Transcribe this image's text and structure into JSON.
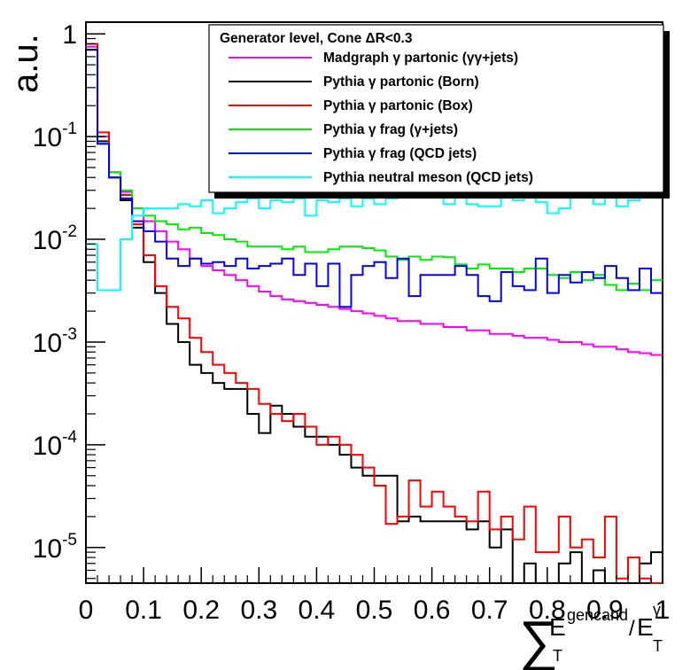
{
  "chart_data": {
    "type": "line",
    "style": "step-histogram",
    "ylabel": "a.u.",
    "xlabel_parts": {
      "sum": "∑",
      "num_main": "E",
      "num_sup": "gencand",
      "num_sub": "T",
      "slash": "/",
      "den_main": "E",
      "den_sup": "γ",
      "den_sub": "T"
    },
    "xlim": [
      0,
      1
    ],
    "ylog": true,
    "ylim": [
      4.5e-06,
      1.3
    ],
    "xticks": [
      0,
      0.1,
      0.2,
      0.3,
      0.4,
      0.5,
      0.6,
      0.7,
      0.8,
      0.9,
      1
    ],
    "xtick_labels": [
      "0",
      "0.1",
      "0.2",
      "0.3",
      "0.4",
      "0.5",
      "0.6",
      "0.7",
      "0.8",
      "0.9",
      "1"
    ],
    "yticks": [
      {
        "value": 1,
        "base": "1",
        "exp": ""
      },
      {
        "value": 0.1,
        "base": "10",
        "exp": "-1"
      },
      {
        "value": 0.01,
        "base": "10",
        "exp": "-2"
      },
      {
        "value": 0.001,
        "base": "10",
        "exp": "-3"
      },
      {
        "value": 0.0001,
        "base": "10",
        "exp": "-4"
      },
      {
        "value": 1e-05,
        "base": "10",
        "exp": "-5"
      }
    ],
    "legend_title": "Generator level, Cone ΔR<0.3",
    "legend_position": "top-right",
    "bin_width": 0.02,
    "series": [
      {
        "name": "Madgraph γ partonic (γγ+jets)",
        "color": "#ff00ff",
        "values": [
          0.75,
          0.1,
          0.045,
          0.029,
          0.02,
          0.015,
          0.012,
          0.0095,
          0.008,
          0.0065,
          0.0055,
          0.005,
          0.0045,
          0.004,
          0.0035,
          0.0031,
          0.0028,
          0.0026,
          0.0025,
          0.0024,
          0.0023,
          0.0022,
          0.0021,
          0.002,
          0.0019,
          0.0018,
          0.0017,
          0.0016,
          0.0016,
          0.0015,
          0.0015,
          0.0014,
          0.0014,
          0.0013,
          0.0013,
          0.0012,
          0.0012,
          0.00115,
          0.0011,
          0.0011,
          0.00105,
          0.001,
          0.001,
          0.00095,
          0.0009,
          0.0009,
          0.00085,
          0.0008,
          0.00078,
          0.00075
        ]
      },
      {
        "name": "Pythia γ partonic (Born)",
        "color": "#000000",
        "values": [
          0.7,
          0.09,
          0.04,
          0.024,
          0.013,
          0.006,
          0.003,
          0.0015,
          0.001,
          0.0006,
          0.0005,
          0.0004,
          0.00035,
          0.00035,
          0.0002,
          0.00013,
          0.00024,
          0.0002,
          0.00015,
          0.00012,
          0.00012,
          0.0001,
          8e-05,
          6e-05,
          5e-05,
          5e-05,
          5e-05,
          1.8e-05,
          2e-05,
          1.8e-05,
          1.8e-05,
          1.8e-05,
          1.8e-05,
          1.5e-05,
          1.8e-05,
          1e-05,
          1.5e-05,
          4.5e-06,
          7e-06,
          3e-06,
          4.5e-06,
          7e-06,
          9e-06,
          4.5e-06,
          6e-06,
          4.5e-06,
          4.5e-06,
          4.5e-06,
          7e-06,
          9e-06
        ]
      },
      {
        "name": "Pythia γ partonic (Box)",
        "color": "#ff0000",
        "values": [
          0.8,
          0.11,
          0.045,
          0.027,
          0.014,
          0.007,
          0.0035,
          0.0022,
          0.0017,
          0.0011,
          0.0008,
          0.0006,
          0.0005,
          0.0004,
          0.00035,
          0.00025,
          0.0002,
          0.00017,
          0.0002,
          0.00015,
          0.0001,
          0.00012,
          0.0001,
          8e-05,
          6e-05,
          4e-05,
          1.7e-05,
          2e-05,
          4.5e-05,
          2.5e-05,
          3.5e-05,
          2.5e-05,
          2e-05,
          1.8e-05,
          3.5e-05,
          1.5e-05,
          2e-05,
          1.2e-05,
          2.5e-05,
          9e-06,
          9e-06,
          2e-05,
          1e-05,
          1.2e-05,
          8e-06,
          2e-05,
          5e-06,
          8e-06,
          5e-06,
          4.5e-06
        ]
      },
      {
        "name": "Pythia γ frag (γ+jets)",
        "color": "#00ee00",
        "values": [
          0.7,
          0.085,
          0.045,
          0.03,
          0.02,
          0.017,
          0.015,
          0.014,
          0.0125,
          0.013,
          0.0115,
          0.011,
          0.01,
          0.0095,
          0.0085,
          0.0085,
          0.0085,
          0.008,
          0.0085,
          0.0075,
          0.0075,
          0.008,
          0.0085,
          0.0085,
          0.0082,
          0.0078,
          0.0068,
          0.0063,
          0.0068,
          0.0063,
          0.0068,
          0.0067,
          0.0057,
          0.0052,
          0.0057,
          0.0052,
          0.0052,
          0.0048,
          0.0052,
          0.0052,
          0.0045,
          0.0042,
          0.0048,
          0.004,
          0.0045,
          0.0036,
          0.0032,
          0.0037,
          0.0032,
          0.004
        ]
      },
      {
        "name": "Pythia γ frag (QCD jets)",
        "color": "#0000ff",
        "values": [
          0.7,
          0.085,
          0.04,
          0.025,
          0.015,
          0.012,
          0.0095,
          0.0065,
          0.0055,
          0.0065,
          0.0058,
          0.006,
          0.0055,
          0.0065,
          0.0052,
          0.0055,
          0.0058,
          0.0065,
          0.0045,
          0.0058,
          0.0035,
          0.0058,
          0.0022,
          0.0045,
          0.0055,
          0.006,
          0.0042,
          0.0065,
          0.0028,
          0.0045,
          0.0045,
          0.0045,
          0.0055,
          0.0045,
          0.0028,
          0.0025,
          0.0048,
          0.0035,
          0.0032,
          0.0065,
          0.003,
          0.0045,
          0.0038,
          0.0048,
          0.0042,
          0.0055,
          0.0042,
          0.0032,
          0.0052,
          0.003
        ]
      },
      {
        "name": "Pythia neutral meson (QCD jets)",
        "color": "#00ffff",
        "values": [
          0.009,
          0.0032,
          0.0032,
          0.01,
          0.017,
          0.02,
          0.02,
          0.02,
          0.022,
          0.021,
          0.024,
          0.018,
          0.02,
          0.023,
          0.025,
          0.02,
          0.024,
          0.023,
          0.025,
          0.017,
          0.024,
          0.023,
          0.025,
          0.021,
          0.025,
          0.022,
          0.025,
          0.028,
          0.026,
          0.03,
          0.028,
          0.022,
          0.027,
          0.022,
          0.021,
          0.021,
          0.027,
          0.024,
          0.027,
          0.023,
          0.018,
          0.02,
          0.026,
          0.03,
          0.022,
          0.026,
          0.021,
          0.024,
          0.028,
          0.026
        ]
      }
    ]
  }
}
